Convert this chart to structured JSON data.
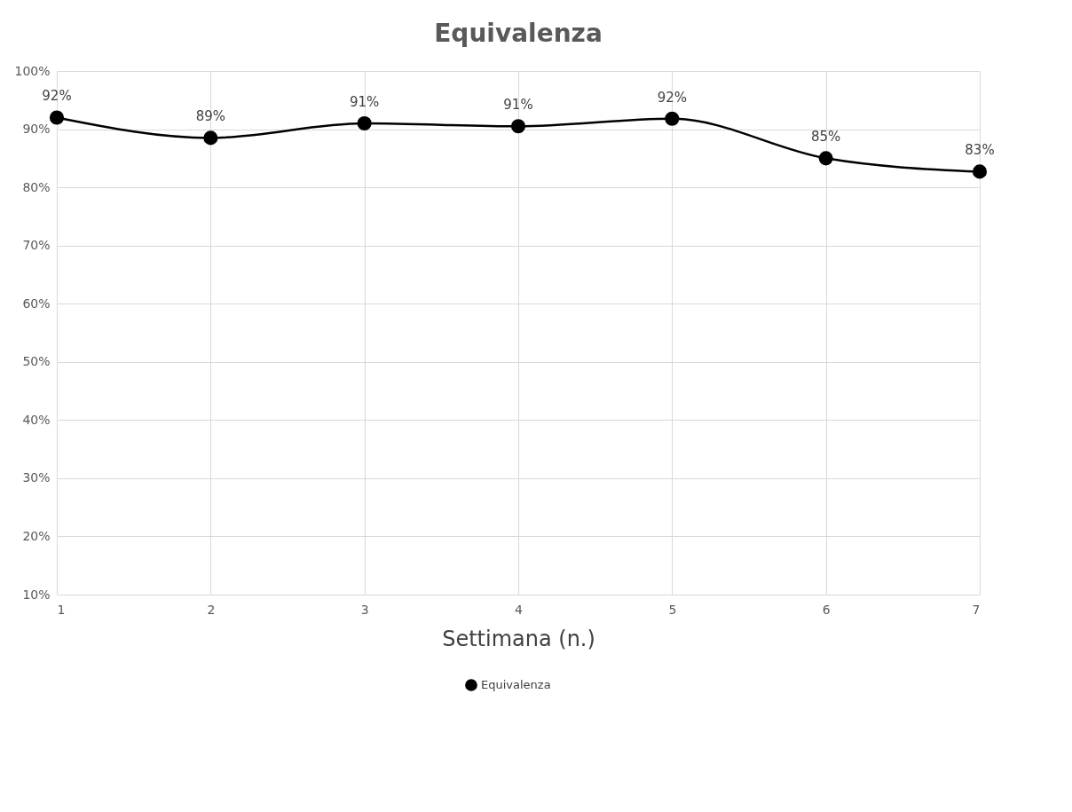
{
  "chart_data": {
    "type": "line",
    "title": "Equivalenza",
    "xlabel": "Settimana (n.)",
    "x": [
      1,
      2,
      3,
      4,
      5,
      6,
      7
    ],
    "series": [
      {
        "name": "Equivalenza",
        "color": "#000000",
        "values": [
          92,
          88.5,
          91,
          90.5,
          91.8,
          85,
          82.7
        ],
        "value_labels": [
          "92%",
          "89%",
          "91%",
          "91%",
          "92%",
          "85%",
          "83%"
        ]
      }
    ],
    "xlim": [
      1,
      7
    ],
    "xticks": [
      1,
      2,
      3,
      4,
      5,
      6,
      7
    ],
    "ylim": [
      10,
      100
    ],
    "yticks": [
      {
        "value": 10,
        "label": "10%"
      },
      {
        "value": 20,
        "label": "20%"
      },
      {
        "value": 30,
        "label": "30%"
      },
      {
        "value": 40,
        "label": "40%"
      },
      {
        "value": 50,
        "label": "50%"
      },
      {
        "value": 60,
        "label": "60%"
      },
      {
        "value": 70,
        "label": "70%"
      },
      {
        "value": 80,
        "label": "80%"
      },
      {
        "value": 90,
        "label": "90%"
      },
      {
        "value": 100,
        "label": "100%"
      }
    ],
    "grid": true,
    "legend": "bottom",
    "marker": "circle"
  }
}
